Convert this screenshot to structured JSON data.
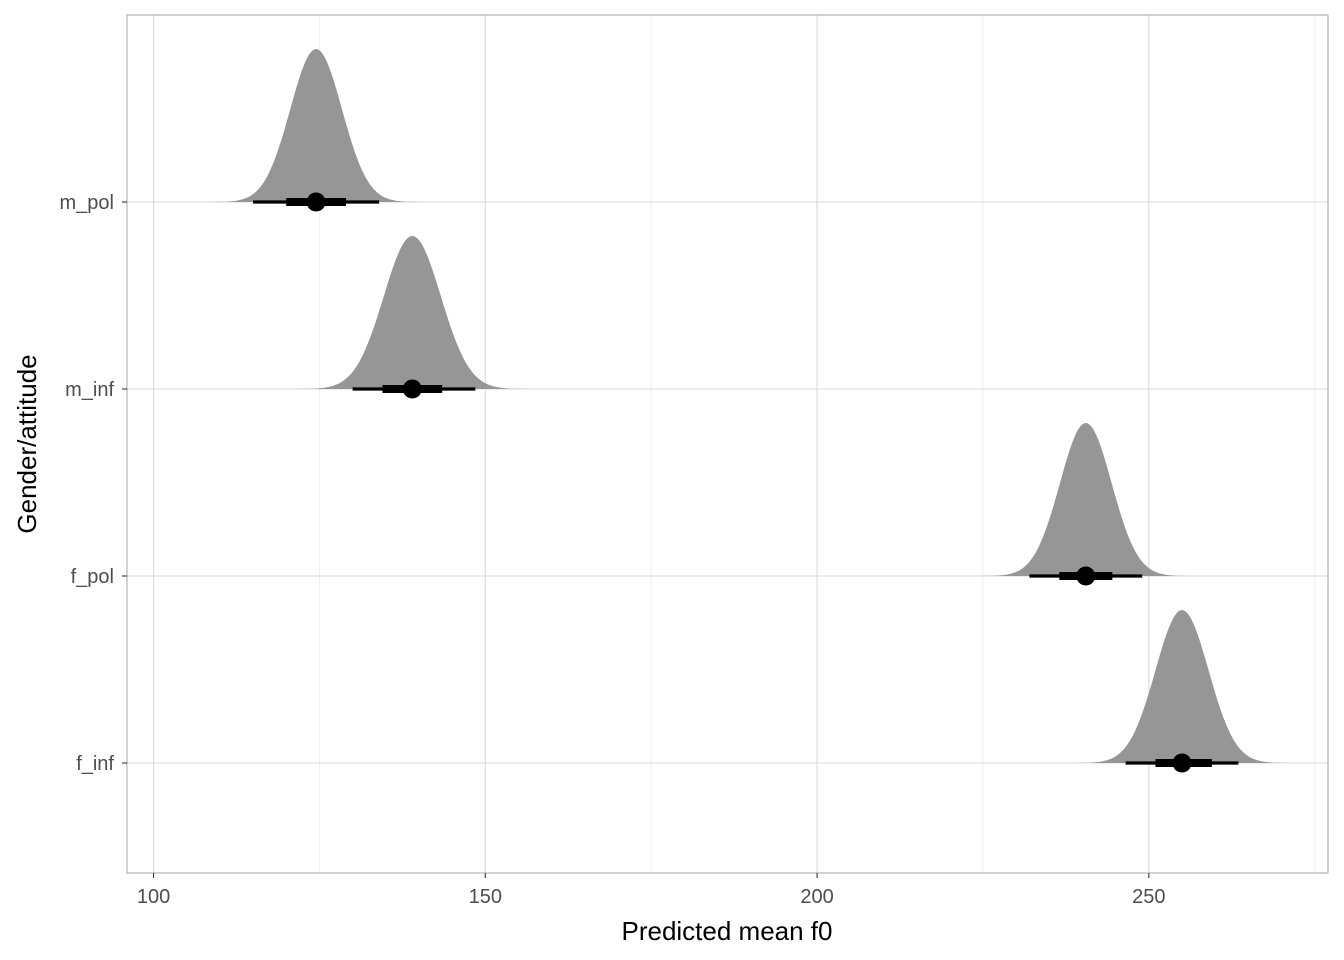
{
  "chart_data": {
    "type": "density-interval",
    "xlabel": "Predicted mean f0",
    "ylabel": "Gender/attitude",
    "xlim": [
      96,
      277
    ],
    "x_ticks": [
      100,
      150,
      200,
      250
    ],
    "categories": [
      "m_pol",
      "m_inf",
      "f_pol",
      "f_inf"
    ],
    "grid": true,
    "series": [
      {
        "name": "m_pol",
        "median": 124.5,
        "sd": 3.9,
        "interval_66": [
          120,
          129
        ],
        "interval_95": [
          115,
          134
        ]
      },
      {
        "name": "m_inf",
        "median": 139,
        "sd": 4.3,
        "interval_66": [
          134.5,
          143.5
        ],
        "interval_95": [
          130,
          148.5
        ]
      },
      {
        "name": "f_pol",
        "median": 240.5,
        "sd": 3.9,
        "interval_66": [
          236.5,
          244.5
        ],
        "interval_95": [
          232,
          249
        ]
      },
      {
        "name": "f_inf",
        "median": 255,
        "sd": 4.0,
        "interval_66": [
          251,
          259.5
        ],
        "interval_95": [
          246.5,
          263.5
        ]
      }
    ],
    "colors": {
      "density": "#969696",
      "interval": "#000000",
      "grid_major": "#d9d9d9",
      "grid_minor": "#ebebeb",
      "panel_border": "#b3b3b3"
    }
  }
}
